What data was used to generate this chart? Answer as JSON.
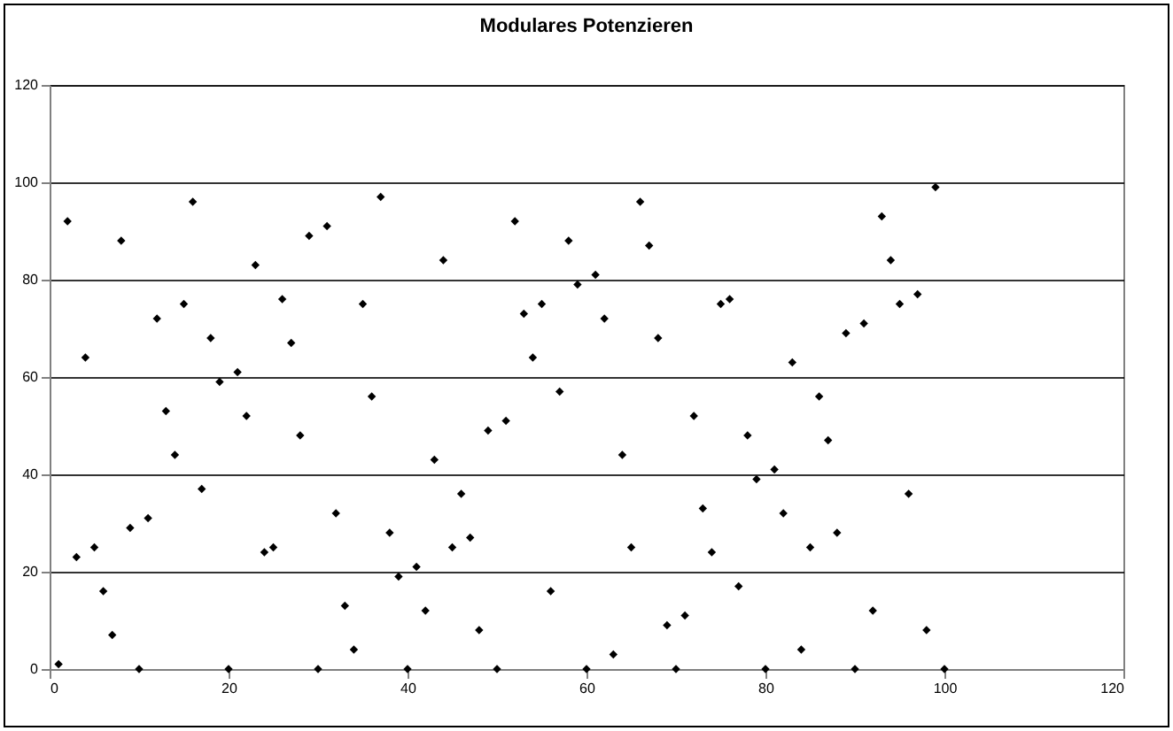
{
  "chart_data": {
    "type": "scatter",
    "title": "Modulares Potenzieren",
    "x": [
      1,
      2,
      3,
      4,
      5,
      6,
      7,
      8,
      9,
      10,
      11,
      12,
      13,
      14,
      15,
      16,
      17,
      18,
      19,
      20,
      21,
      22,
      23,
      24,
      25,
      26,
      27,
      28,
      29,
      30,
      31,
      32,
      33,
      34,
      35,
      36,
      37,
      38,
      39,
      40,
      41,
      42,
      43,
      44,
      45,
      46,
      47,
      48,
      49,
      50,
      51,
      52,
      53,
      54,
      55,
      56,
      57,
      58,
      59,
      60,
      61,
      62,
      63,
      64,
      65,
      66,
      67,
      68,
      69,
      70,
      71,
      72,
      73,
      74,
      75,
      76,
      77,
      78,
      79,
      80,
      81,
      82,
      83,
      84,
      85,
      86,
      87,
      88,
      89,
      90,
      91,
      92,
      93,
      94,
      95,
      96,
      97,
      98,
      99,
      100
    ],
    "series": [
      {
        "color": "#000000",
        "values": [
          1,
          92,
          23,
          64,
          25,
          16,
          7,
          88,
          29,
          0,
          31,
          72,
          53,
          44,
          75,
          96,
          37,
          68,
          59,
          0,
          61,
          52,
          83,
          24,
          25,
          76,
          67,
          48,
          89,
          0,
          91,
          32,
          13,
          4,
          75,
          56,
          97,
          28,
          19,
          0,
          21,
          12,
          43,
          84,
          25,
          36,
          27,
          8,
          49,
          0,
          51,
          92,
          73,
          64,
          75,
          16,
          57,
          88,
          79,
          0,
          81,
          72,
          3,
          44,
          25,
          96,
          87,
          68,
          9,
          0,
          11,
          52,
          33,
          24,
          75,
          76,
          17,
          48,
          39,
          0,
          41,
          32,
          63,
          4,
          25,
          56,
          47,
          28,
          69,
          0,
          71,
          12,
          93,
          84,
          75,
          36,
          77,
          8,
          99,
          0
        ]
      }
    ],
    "xlim": [
      0,
      120
    ],
    "xticks": [
      0,
      20,
      40,
      60,
      80,
      100,
      120
    ],
    "ylim": [
      0,
      120
    ],
    "yticks": [
      0,
      20,
      40,
      60,
      80,
      100,
      120
    ],
    "grid": "y",
    "marker": "diamond",
    "legend": false
  }
}
